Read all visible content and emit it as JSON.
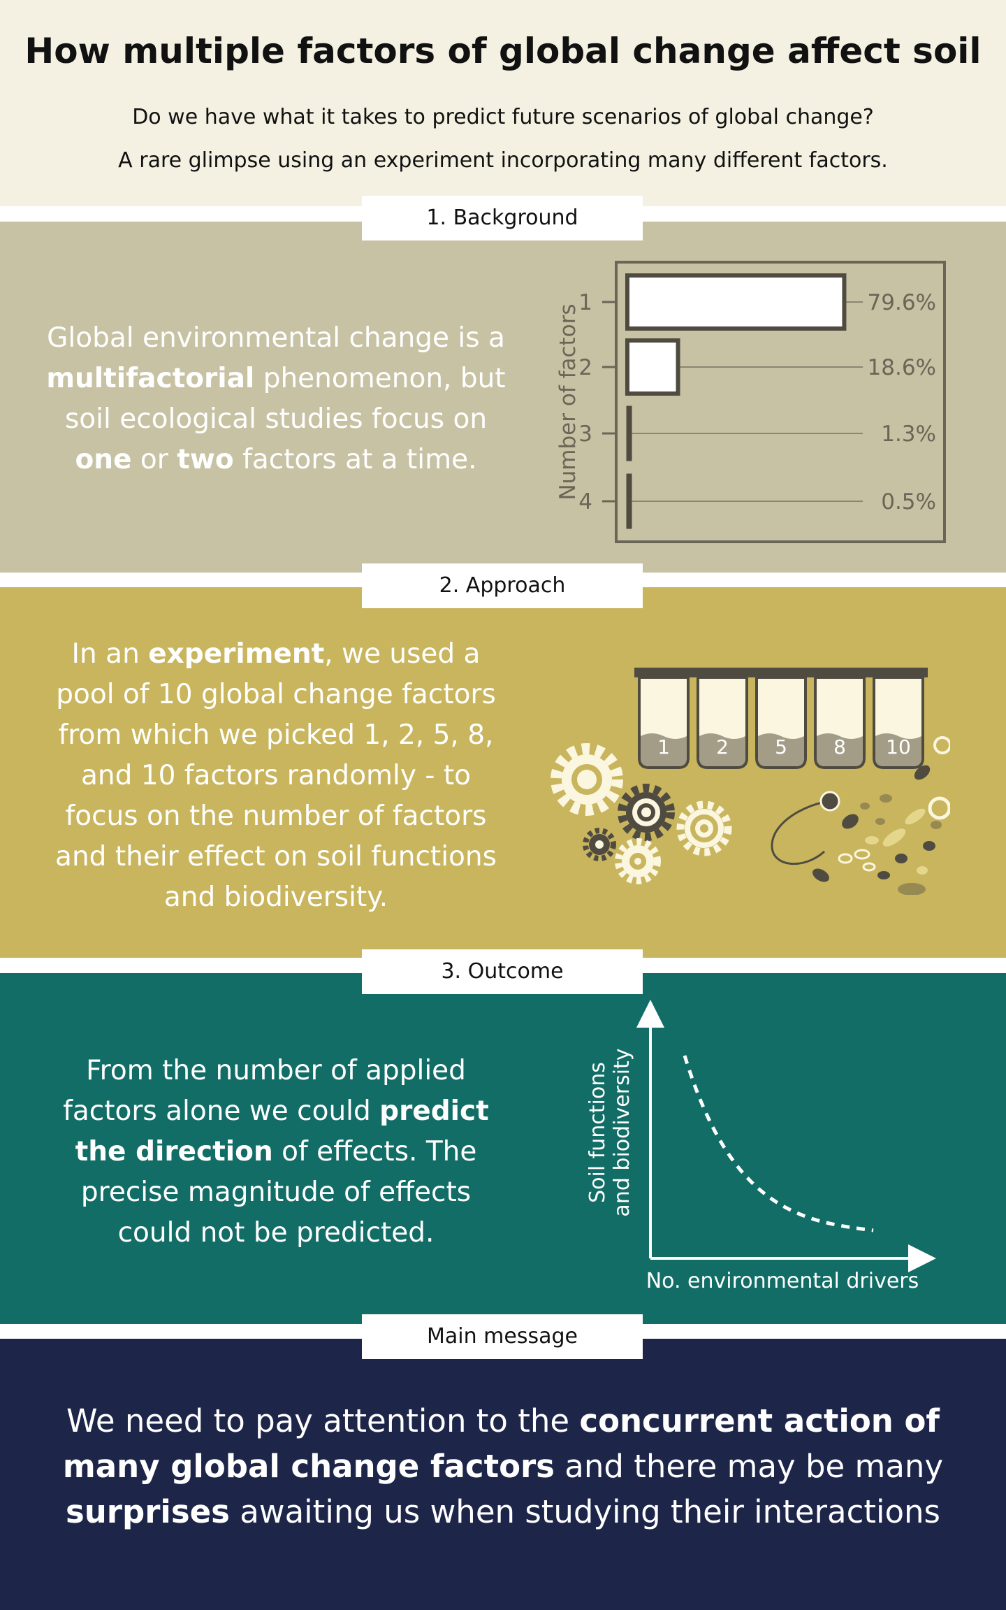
{
  "title": "How multiple factors of global change affect soil",
  "subtitle": [
    "Do we have what it takes to predict future scenarios of global change?",
    "A rare glimpse using an experiment incorporating many different factors."
  ],
  "sections": {
    "background": {
      "tab": "1. Background",
      "text": [
        {
          "t": "Global environmental change is a ",
          "b": false
        },
        {
          "t": "multifactorial",
          "b": true
        },
        {
          "t": " phenomenon, but soil ecological studies focus on ",
          "b": false
        },
        {
          "t": "one",
          "b": true
        },
        {
          "t": " or ",
          "b": false
        },
        {
          "t": "two",
          "b": true
        },
        {
          "t": " factors at a time.",
          "b": false
        }
      ]
    },
    "approach": {
      "tab": "2. Approach",
      "text": [
        {
          "t": "In an ",
          "b": false
        },
        {
          "t": "experiment",
          "b": true
        },
        {
          "t": ", we used a pool of 10 global change factors from which we picked 1, 2, 5, 8, and 10 factors randomly - to focus on the number of factors and their effect on soil functions and biodiversity.",
          "b": false
        }
      ],
      "tubes": [
        "1",
        "2",
        "5",
        "8",
        "10"
      ]
    },
    "outcome": {
      "tab": "3. Outcome",
      "text": [
        {
          "t": "From the number of applied factors alone we could ",
          "b": false
        },
        {
          "t": "predict the direction",
          "b": true
        },
        {
          "t": " of effects. The precise magnitude of effects could not be predicted.",
          "b": false
        }
      ],
      "xlabel": "No. environmental drivers",
      "ylabel": [
        "Soil functions",
        "and biodiversity"
      ]
    },
    "main": {
      "tab": "Main message",
      "text": [
        {
          "t": "We need to pay attention to the ",
          "b": false
        },
        {
          "t": "concurrent action of many global change factors",
          "b": true
        },
        {
          "t": " and there may be many ",
          "b": false
        },
        {
          "t": "surprises",
          "b": true
        },
        {
          "t": " awaiting us when studying their interactions",
          "b": false
        }
      ]
    }
  },
  "colors": {
    "header_bg": "#f4f1e2",
    "background_bg": "#c7c2a4",
    "approach_bg": "#c8b55d",
    "outcome_bg": "#116d66",
    "main_bg": "#1d2549",
    "dark_ink": "#4f4b41",
    "tube_fill": "#a39d88"
  },
  "chart_data": {
    "type": "bar",
    "orientation": "horizontal",
    "ylabel": "Number of factors",
    "categories": [
      "1",
      "2",
      "3",
      "4"
    ],
    "values": [
      79.6,
      18.6,
      1.3,
      0.5
    ],
    "value_labels": [
      "79.6%",
      "18.6%",
      "1.3%",
      "0.5%"
    ]
  }
}
